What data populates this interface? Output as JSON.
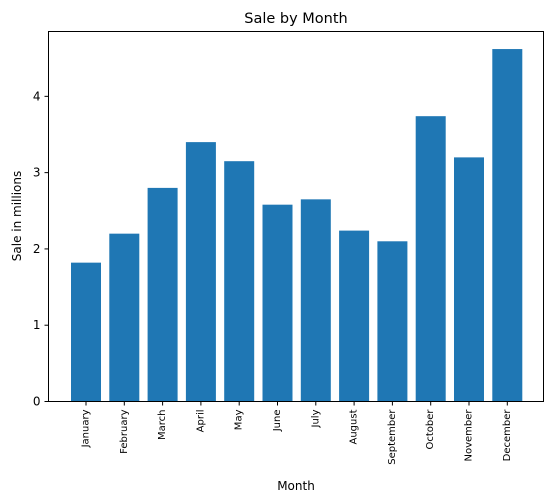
{
  "chart_data": {
    "type": "bar",
    "title": "Sale by Month",
    "xlabel": "Month",
    "ylabel": "Sale in millions",
    "categories": [
      "January",
      "February",
      "March",
      "April",
      "May",
      "June",
      "July",
      "August",
      "September",
      "October",
      "November",
      "December"
    ],
    "values": [
      1.82,
      2.2,
      2.8,
      3.4,
      3.15,
      2.58,
      2.65,
      2.24,
      2.1,
      3.74,
      3.2,
      4.62
    ],
    "ylim": [
      0,
      4.85
    ],
    "yticks": [
      0,
      1,
      2,
      3,
      4
    ],
    "bar_color": "#1f77b4",
    "grid": false,
    "legend": "none"
  }
}
